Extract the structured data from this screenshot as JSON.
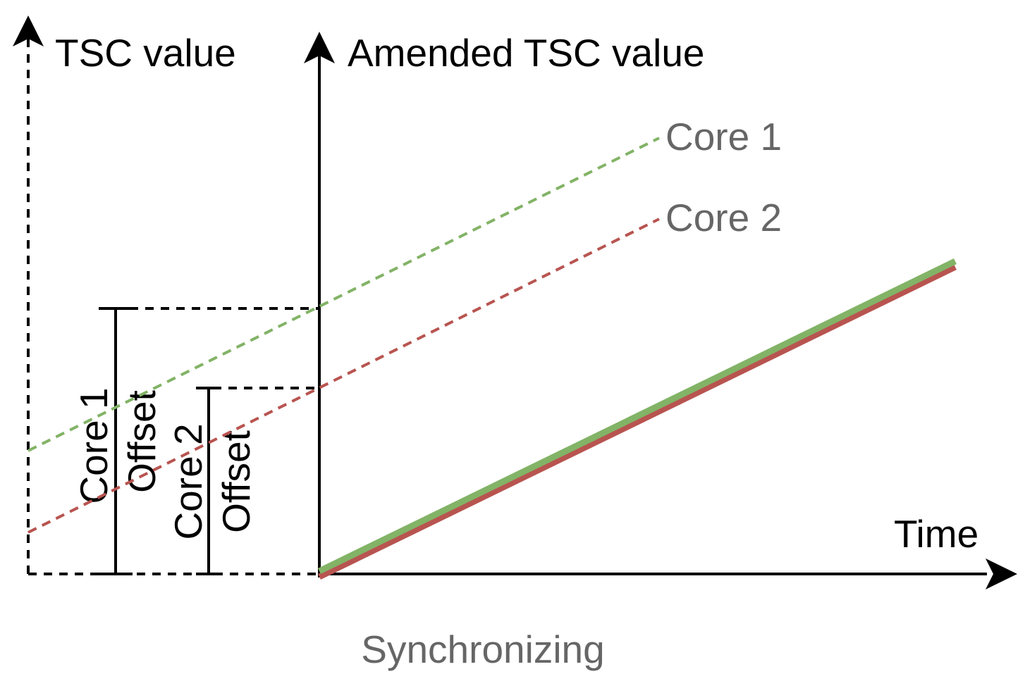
{
  "labels": {
    "tsc_value": "TSC value",
    "amended_tsc_value": "Amended TSC value",
    "time": "Time",
    "synchronizing": "Synchronizing"
  },
  "lines": {
    "core1": {
      "label": "Core 1",
      "color": "#82b366"
    },
    "core2": {
      "label": "Core 2",
      "color": "#b85450"
    }
  },
  "offsets": {
    "core1": {
      "line1": "Core 1",
      "line2": "Offset"
    },
    "core2": {
      "line1": "Core 2",
      "line2": "Offset"
    }
  },
  "colors": {
    "axis": "#000000",
    "label_gray": "#666666"
  }
}
